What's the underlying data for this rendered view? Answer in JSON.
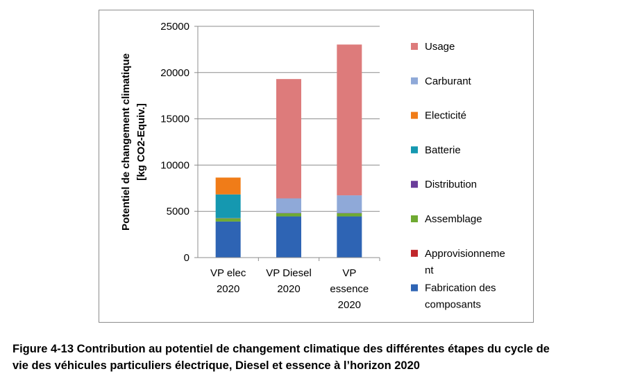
{
  "chart_data": {
    "type": "bar",
    "stacked": true,
    "categories": [
      [
        "VP elec",
        "2020"
      ],
      [
        "VP Diesel",
        "2020"
      ],
      [
        "VP",
        "essence",
        "2020"
      ]
    ],
    "ylabel": [
      "Potentiel de changement climatique",
      "[kg CO2-Equiv.]"
    ],
    "ylim": [
      0,
      25000
    ],
    "yticks": [
      0,
      5000,
      10000,
      15000,
      20000,
      25000
    ],
    "grid": true,
    "legend_position": "right",
    "series": [
      {
        "name": "Fabrication des composants",
        "legend_lines": [
          "Fabrication des",
          "composants"
        ],
        "color": "#2e64b4",
        "values": [
          3900,
          4450,
          4450
        ]
      },
      {
        "name": "Approvisionnement",
        "legend_lines": [
          "Approvisionneme",
          "nt"
        ],
        "color": "#c0262b",
        "values": [
          0,
          0,
          0
        ]
      },
      {
        "name": "Assemblage",
        "legend_lines": [
          "Assemblage"
        ],
        "color": "#6faa32",
        "values": [
          350,
          350,
          350
        ]
      },
      {
        "name": "Distribution",
        "legend_lines": [
          "Distribution"
        ],
        "color": "#6a3d9a",
        "values": [
          30,
          30,
          30
        ]
      },
      {
        "name": "Batterie",
        "legend_lines": [
          "Batterie"
        ],
        "color": "#1598b0",
        "values": [
          2550,
          0,
          0
        ]
      },
      {
        "name": "Electicité",
        "legend_lines": [
          "Electicité"
        ],
        "color": "#f07c18",
        "values": [
          1820,
          0,
          0
        ]
      },
      {
        "name": "Carburant",
        "legend_lines": [
          "Carburant"
        ],
        "color": "#8fa9d8",
        "values": [
          0,
          1570,
          1900
        ]
      },
      {
        "name": "Usage",
        "legend_lines": [
          "Usage"
        ],
        "color": "#dd7b7b",
        "values": [
          0,
          12900,
          16300
        ]
      }
    ]
  },
  "caption": {
    "lines": [
      "Figure 4-13 Contribution au potentiel de changement climatique des différentes étapes du cycle de",
      "vie des véhicules particuliers électrique, Diesel et essence à l’horizon 2020"
    ]
  }
}
